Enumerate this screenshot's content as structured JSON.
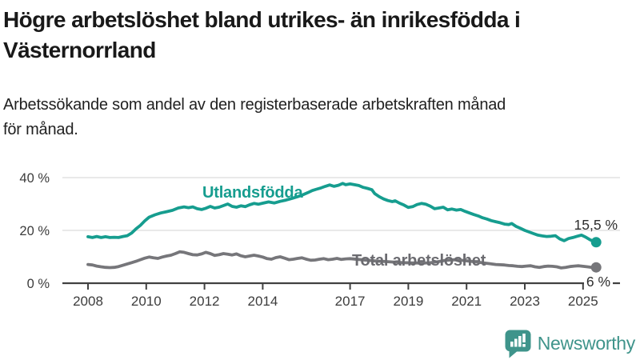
{
  "header": {
    "title_lines": [
      "Högre arbetslöshet bland utrikes- än inrikesfödda i",
      "Västernorrland"
    ],
    "subtitle_lines": [
      "Arbetssökande som andel av den registerbaserade arbetskraften månad",
      "för månad."
    ]
  },
  "footer": {
    "brand": "Newsworthy"
  },
  "colors": {
    "teal": "#169d8f",
    "gray_line": "#76767a",
    "gray_label": "#6b6b70",
    "axis": "#414141",
    "grid": "#e2e2e2",
    "tick_text": "#3c3c3c",
    "value_text": "#2d2d2d",
    "logo": "#3f948b"
  },
  "chart_data": {
    "type": "line",
    "title": "Högre arbetslöshet bland utrikes- än inrikesfödda i Västernorrland",
    "subtitle": "Arbetssökande som andel av den registerbaserade arbetskraften månad för månad.",
    "unit": "%",
    "grid": "horizontal-only",
    "x_axis": {
      "range": [
        2007.2,
        2026.3
      ],
      "ticks": [
        2008,
        2010,
        2012,
        2014,
        2017,
        2019,
        2021,
        2023,
        2025
      ],
      "tick_labels": [
        "2008",
        "2010",
        "2012",
        "2014",
        "2017",
        "2019",
        "2021",
        "2023",
        "2025"
      ]
    },
    "y_axis": {
      "range": [
        0,
        44
      ],
      "ticks": [
        0,
        20,
        40
      ],
      "tick_labels": [
        "0 %",
        "20 %",
        "40 %"
      ]
    },
    "series": [
      {
        "name": "Utlandsfödda",
        "color": "#169d8f",
        "label_color": "#169d8f",
        "end_value": 15.5,
        "end_label": "15,5 %",
        "points": [
          [
            2008.0,
            17.6
          ],
          [
            2008.15,
            17.3
          ],
          [
            2008.3,
            17.7
          ],
          [
            2008.45,
            17.3
          ],
          [
            2008.6,
            17.6
          ],
          [
            2008.75,
            17.3
          ],
          [
            2008.9,
            17.4
          ],
          [
            2009.05,
            17.3
          ],
          [
            2009.2,
            17.7
          ],
          [
            2009.35,
            18.0
          ],
          [
            2009.5,
            19.0
          ],
          [
            2009.65,
            20.6
          ],
          [
            2009.8,
            21.9
          ],
          [
            2009.95,
            23.6
          ],
          [
            2010.1,
            25.0
          ],
          [
            2010.3,
            25.9
          ],
          [
            2010.5,
            26.6
          ],
          [
            2010.7,
            27.1
          ],
          [
            2010.9,
            27.6
          ],
          [
            2011.1,
            28.5
          ],
          [
            2011.3,
            28.9
          ],
          [
            2011.45,
            28.6
          ],
          [
            2011.6,
            28.9
          ],
          [
            2011.75,
            28.2
          ],
          [
            2011.9,
            27.9
          ],
          [
            2012.05,
            28.4
          ],
          [
            2012.2,
            29.1
          ],
          [
            2012.35,
            28.5
          ],
          [
            2012.5,
            28.8
          ],
          [
            2012.65,
            29.4
          ],
          [
            2012.8,
            30.0
          ],
          [
            2012.95,
            29.1
          ],
          [
            2013.1,
            28.8
          ],
          [
            2013.25,
            29.3
          ],
          [
            2013.4,
            29.0
          ],
          [
            2013.55,
            29.7
          ],
          [
            2013.7,
            30.2
          ],
          [
            2013.85,
            29.9
          ],
          [
            2014.0,
            30.3
          ],
          [
            2014.2,
            30.8
          ],
          [
            2014.4,
            30.4
          ],
          [
            2014.6,
            31.0
          ],
          [
            2014.8,
            31.5
          ],
          [
            2015.0,
            32.1
          ],
          [
            2015.2,
            32.8
          ],
          [
            2015.4,
            33.6
          ],
          [
            2015.55,
            34.3
          ],
          [
            2015.7,
            35.1
          ],
          [
            2015.85,
            35.6
          ],
          [
            2016.0,
            36.1
          ],
          [
            2016.15,
            36.7
          ],
          [
            2016.3,
            37.2
          ],
          [
            2016.45,
            36.7
          ],
          [
            2016.6,
            37.1
          ],
          [
            2016.75,
            37.8
          ],
          [
            2016.85,
            37.3
          ],
          [
            2017.0,
            37.6
          ],
          [
            2017.15,
            37.3
          ],
          [
            2017.3,
            37.0
          ],
          [
            2017.45,
            36.3
          ],
          [
            2017.6,
            35.9
          ],
          [
            2017.75,
            35.4
          ],
          [
            2017.85,
            33.9
          ],
          [
            2018.0,
            32.8
          ],
          [
            2018.15,
            31.9
          ],
          [
            2018.3,
            31.3
          ],
          [
            2018.45,
            30.9
          ],
          [
            2018.55,
            31.2
          ],
          [
            2018.7,
            30.3
          ],
          [
            2018.85,
            29.6
          ],
          [
            2019.0,
            28.7
          ],
          [
            2019.15,
            29.0
          ],
          [
            2019.3,
            29.8
          ],
          [
            2019.45,
            30.2
          ],
          [
            2019.6,
            29.9
          ],
          [
            2019.75,
            29.2
          ],
          [
            2019.9,
            28.2
          ],
          [
            2020.05,
            28.5
          ],
          [
            2020.2,
            28.8
          ],
          [
            2020.35,
            27.8
          ],
          [
            2020.5,
            28.1
          ],
          [
            2020.65,
            27.7
          ],
          [
            2020.8,
            27.9
          ],
          [
            2020.95,
            27.2
          ],
          [
            2021.1,
            26.6
          ],
          [
            2021.25,
            26.0
          ],
          [
            2021.4,
            25.5
          ],
          [
            2021.55,
            24.8
          ],
          [
            2021.7,
            24.3
          ],
          [
            2021.85,
            23.7
          ],
          [
            2022.0,
            23.3
          ],
          [
            2022.15,
            22.9
          ],
          [
            2022.3,
            22.4
          ],
          [
            2022.45,
            22.2
          ],
          [
            2022.55,
            22.6
          ],
          [
            2022.7,
            21.5
          ],
          [
            2022.85,
            20.8
          ],
          [
            2023.0,
            20.0
          ],
          [
            2023.15,
            19.4
          ],
          [
            2023.3,
            18.8
          ],
          [
            2023.45,
            18.2
          ],
          [
            2023.6,
            17.9
          ],
          [
            2023.75,
            17.7
          ],
          [
            2023.9,
            17.8
          ],
          [
            2024.05,
            18.0
          ],
          [
            2024.2,
            16.8
          ],
          [
            2024.35,
            16.1
          ],
          [
            2024.5,
            16.9
          ],
          [
            2024.65,
            17.3
          ],
          [
            2024.8,
            17.8
          ],
          [
            2024.95,
            18.2
          ],
          [
            2025.1,
            17.4
          ],
          [
            2025.25,
            16.4
          ],
          [
            2025.45,
            15.5
          ]
        ]
      },
      {
        "name": "Total arbetslöshet",
        "color": "#76767a",
        "label_color": "#6b6b70",
        "end_value": 6,
        "end_label": "6 %",
        "points": [
          [
            2008.0,
            7.1
          ],
          [
            2008.15,
            6.9
          ],
          [
            2008.3,
            6.5
          ],
          [
            2008.45,
            6.2
          ],
          [
            2008.6,
            6.0
          ],
          [
            2008.75,
            5.9
          ],
          [
            2008.9,
            6.0
          ],
          [
            2009.05,
            6.3
          ],
          [
            2009.2,
            6.8
          ],
          [
            2009.35,
            7.3
          ],
          [
            2009.5,
            7.8
          ],
          [
            2009.65,
            8.3
          ],
          [
            2009.8,
            8.9
          ],
          [
            2009.95,
            9.5
          ],
          [
            2010.1,
            9.9
          ],
          [
            2010.25,
            9.6
          ],
          [
            2010.4,
            9.4
          ],
          [
            2010.55,
            9.9
          ],
          [
            2010.7,
            10.3
          ],
          [
            2010.85,
            10.6
          ],
          [
            2011.0,
            11.2
          ],
          [
            2011.15,
            11.9
          ],
          [
            2011.3,
            11.7
          ],
          [
            2011.45,
            11.2
          ],
          [
            2011.6,
            10.8
          ],
          [
            2011.75,
            10.7
          ],
          [
            2011.9,
            11.1
          ],
          [
            2012.05,
            11.7
          ],
          [
            2012.2,
            11.2
          ],
          [
            2012.35,
            10.5
          ],
          [
            2012.5,
            10.8
          ],
          [
            2012.65,
            11.2
          ],
          [
            2012.8,
            11.0
          ],
          [
            2012.95,
            10.7
          ],
          [
            2013.1,
            11.1
          ],
          [
            2013.25,
            10.4
          ],
          [
            2013.4,
            10.0
          ],
          [
            2013.55,
            10.3
          ],
          [
            2013.7,
            10.6
          ],
          [
            2013.85,
            10.3
          ],
          [
            2014.0,
            9.9
          ],
          [
            2014.15,
            9.3
          ],
          [
            2014.3,
            9.1
          ],
          [
            2014.45,
            9.7
          ],
          [
            2014.6,
            10.0
          ],
          [
            2014.75,
            9.5
          ],
          [
            2014.9,
            8.9
          ],
          [
            2015.05,
            9.1
          ],
          [
            2015.2,
            9.4
          ],
          [
            2015.35,
            9.6
          ],
          [
            2015.5,
            9.1
          ],
          [
            2015.65,
            8.7
          ],
          [
            2015.8,
            8.8
          ],
          [
            2015.95,
            9.1
          ],
          [
            2016.1,
            9.3
          ],
          [
            2016.25,
            8.9
          ],
          [
            2016.4,
            9.1
          ],
          [
            2016.55,
            9.4
          ],
          [
            2016.7,
            9.0
          ],
          [
            2016.85,
            9.2
          ],
          [
            2017.0,
            9.3
          ],
          [
            2017.3,
            9.0
          ],
          [
            2017.6,
            8.7
          ],
          [
            2017.9,
            8.4
          ],
          [
            2018.2,
            8.2
          ],
          [
            2018.5,
            8.0
          ],
          [
            2018.8,
            7.8
          ],
          [
            2019.1,
            7.7
          ],
          [
            2019.4,
            7.6
          ],
          [
            2019.7,
            7.7
          ],
          [
            2020.0,
            8.1
          ],
          [
            2020.3,
            8.7
          ],
          [
            2020.6,
            8.9
          ],
          [
            2020.9,
            8.6
          ],
          [
            2021.2,
            8.2
          ],
          [
            2021.5,
            7.8
          ],
          [
            2021.8,
            7.4
          ],
          [
            2022.0,
            7.1
          ],
          [
            2022.3,
            6.9
          ],
          [
            2022.45,
            6.7
          ],
          [
            2022.6,
            6.6
          ],
          [
            2022.75,
            6.4
          ],
          [
            2022.9,
            6.3
          ],
          [
            2023.05,
            6.5
          ],
          [
            2023.2,
            6.6
          ],
          [
            2023.35,
            6.2
          ],
          [
            2023.5,
            6.0
          ],
          [
            2023.65,
            6.3
          ],
          [
            2023.8,
            6.5
          ],
          [
            2023.95,
            6.4
          ],
          [
            2024.1,
            6.2
          ],
          [
            2024.25,
            5.8
          ],
          [
            2024.4,
            6.0
          ],
          [
            2024.55,
            6.3
          ],
          [
            2024.7,
            6.5
          ],
          [
            2024.85,
            6.6
          ],
          [
            2025.0,
            6.4
          ],
          [
            2025.15,
            6.2
          ],
          [
            2025.3,
            6.0
          ],
          [
            2025.45,
            6.0
          ]
        ]
      }
    ],
    "legend_position": "inline-labels"
  }
}
